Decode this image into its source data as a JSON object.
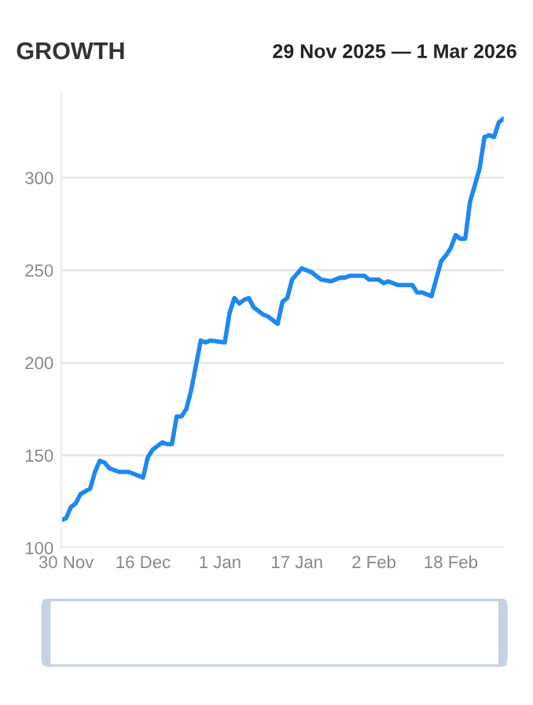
{
  "chart_data": {
    "type": "line",
    "title": "GROWTH",
    "subtitle": "29 Nov 2025 — 1 Mar 2026",
    "x": [
      "2025-11-29",
      "2025-11-30",
      "2025-12-01",
      "2025-12-02",
      "2025-12-03",
      "2025-12-05",
      "2025-12-06",
      "2025-12-07",
      "2025-12-08",
      "2025-12-09",
      "2025-12-11",
      "2025-12-13",
      "2025-12-16",
      "2025-12-17",
      "2025-12-18",
      "2025-12-20",
      "2025-12-21",
      "2025-12-22",
      "2025-12-23",
      "2025-12-24",
      "2025-12-25",
      "2025-12-26",
      "2025-12-28",
      "2025-12-29",
      "2025-12-30",
      "2026-01-02",
      "2026-01-03",
      "2026-01-04",
      "2026-01-05",
      "2026-01-06",
      "2026-01-07",
      "2026-01-08",
      "2026-01-10",
      "2026-01-11",
      "2026-01-13",
      "2026-01-14",
      "2026-01-15",
      "2026-01-16",
      "2026-01-18",
      "2026-01-20",
      "2026-01-21",
      "2026-01-22",
      "2026-01-24",
      "2026-01-26",
      "2026-01-27",
      "2026-01-28",
      "2026-01-31",
      "2026-02-01",
      "2026-02-03",
      "2026-02-04",
      "2026-02-05",
      "2026-02-07",
      "2026-02-10",
      "2026-02-11",
      "2026-02-12",
      "2026-02-14",
      "2026-02-16",
      "2026-02-17",
      "2026-02-18",
      "2026-02-19",
      "2026-02-20",
      "2026-02-21",
      "2026-02-22",
      "2026-02-24",
      "2026-02-25",
      "2026-02-26",
      "2026-02-27",
      "2026-02-28",
      "2026-03-01"
    ],
    "series": [
      {
        "color": "#1e88f0",
        "values": [
          115,
          116,
          122,
          124,
          129,
          132,
          141,
          147,
          146,
          143,
          141,
          141,
          138,
          149,
          153,
          157,
          156,
          156,
          171,
          171,
          175,
          185,
          212,
          211,
          212,
          211,
          227,
          235,
          232,
          234,
          235,
          230,
          226,
          225,
          221,
          233,
          235,
          245,
          251,
          249,
          247,
          245,
          244,
          246,
          246,
          247,
          247,
          245,
          245,
          243,
          244,
          242,
          242,
          238,
          238,
          236,
          255,
          258,
          262,
          269,
          267,
          267,
          287,
          305,
          322,
          323,
          322,
          330,
          332
        ]
      }
    ],
    "xlim": [
      "2025-11-29",
      "2026-03-01"
    ],
    "xticks": [
      {
        "value": "2025-11-30",
        "label": "30 Nov"
      },
      {
        "value": "2025-12-16",
        "label": "16 Dec"
      },
      {
        "value": "2026-01-01",
        "label": "1 Jan"
      },
      {
        "value": "2026-01-17",
        "label": "17 Jan"
      },
      {
        "value": "2026-02-02",
        "label": "2 Feb"
      },
      {
        "value": "2026-02-18",
        "label": "18 Feb"
      }
    ],
    "ylim": [
      100,
      345
    ],
    "yticks": [
      100,
      150,
      200,
      250,
      300
    ],
    "grid": "y",
    "line_style": "solid",
    "marker": "none"
  }
}
